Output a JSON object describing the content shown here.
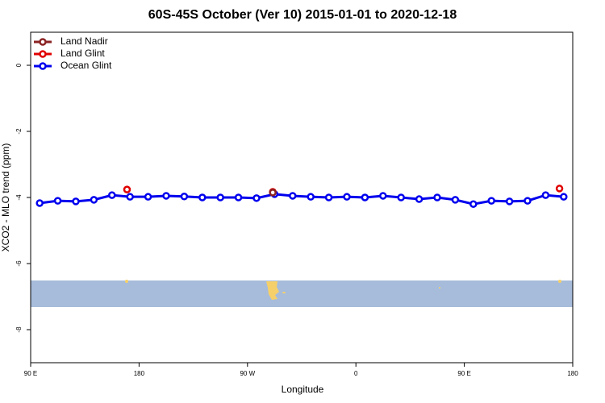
{
  "chart_data": {
    "type": "line",
    "title": "60S-45S October (Ver 10)   2015-01-01 to 2020-12-18",
    "x_label": "Longitude",
    "y_label": "XCO2 - MLO trend (ppm)",
    "xlim": [
      90,
      540
    ],
    "ylim": [
      -9,
      1
    ],
    "xticks": [
      {
        "value": 90,
        "label": "90 E"
      },
      180,
      {
        "value": 270,
        "label": "90 W"
      },
      {
        "value": 360,
        "label": "0"
      },
      {
        "value": 450,
        "label": "90 E"
      },
      {
        "value": 540,
        "label": "180"
      }
    ],
    "yticks": [
      0,
      -2,
      -4,
      -6,
      -8
    ],
    "legend": "top-left",
    "series": [
      {
        "name": "Land Nadir",
        "color": "#8b2323",
        "x": [
          291
        ],
        "values": [
          -3.85
        ]
      },
      {
        "name": "Land Glint",
        "color": "#e00000",
        "x": [
          170,
          291,
          529
        ],
        "values": [
          -3.76,
          -3.83,
          -3.73
        ]
      },
      {
        "name": "Ocean Glint",
        "color": "#0000ee",
        "x": [
          97.5,
          112.5,
          127.5,
          142.5,
          157.5,
          172.5,
          187.5,
          202.5,
          217.5,
          232.5,
          247.5,
          262.5,
          277.5,
          292.5,
          307.5,
          322.5,
          337.5,
          352.5,
          367.5,
          382.5,
          397.5,
          412.5,
          427.5,
          442.5,
          457.5,
          472.5,
          487.5,
          502.5,
          517.5,
          532.5
        ],
        "values": [
          -4.17,
          -4.1,
          -4.12,
          -4.07,
          -3.93,
          -3.98,
          -3.98,
          -3.95,
          -3.97,
          -4.0,
          -4.0,
          -4.0,
          -4.02,
          -3.9,
          -3.95,
          -3.98,
          -4.0,
          -3.98,
          -4.0,
          -3.95,
          -4.0,
          -4.05,
          -4.0,
          -4.07,
          -4.2,
          -4.1,
          -4.12,
          -4.1,
          -3.93,
          -3.98
        ]
      }
    ]
  }
}
